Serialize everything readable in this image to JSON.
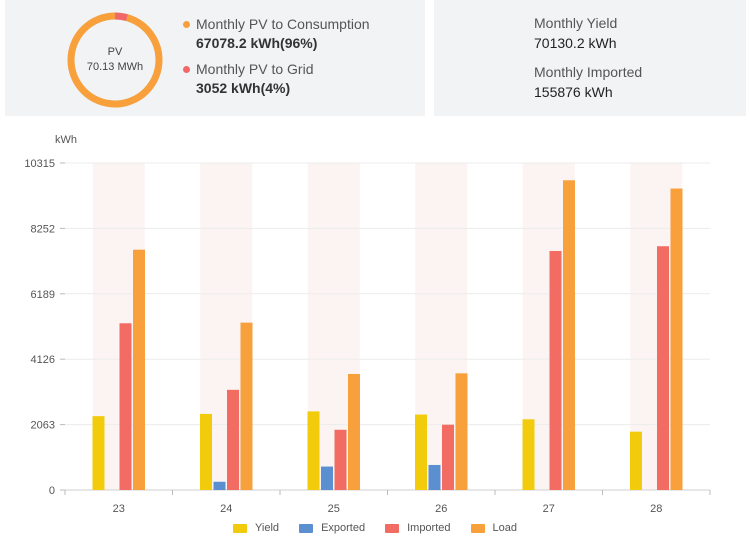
{
  "summary": {
    "donut": {
      "title": "PV",
      "value": "70.13 MWh",
      "consumption_share": 0.956,
      "grid_share": 0.044,
      "color_consumption": "#f7a03c",
      "color_grid": "#f06868"
    },
    "legend": [
      {
        "label": "Monthly PV to Consumption",
        "value": "67078.2 kWh(96%)",
        "color": "#f7a03c"
      },
      {
        "label": "Monthly PV to Grid",
        "value": "3052 kWh(4%)",
        "color": "#f06868"
      }
    ],
    "stats": [
      {
        "label": "Monthly Yield",
        "value": "70130.2 kWh"
      },
      {
        "label": "Monthly Imported",
        "value": "155876 kWh"
      }
    ]
  },
  "chart_data": {
    "type": "bar",
    "ylabel": "kWh",
    "ylim": [
      0,
      10315
    ],
    "yticks": [
      "0",
      "2063",
      "4126",
      "6189",
      "8252",
      "10315"
    ],
    "categories": [
      "23",
      "24",
      "25",
      "26",
      "27",
      "28"
    ],
    "series": [
      {
        "name": "Yield",
        "color": "#f2cc0c",
        "values": [
          2330,
          2400,
          2480,
          2380,
          2230,
          1840
        ]
      },
      {
        "name": "Exported",
        "color": "#5b8fd0",
        "values": [
          0,
          260,
          740,
          790,
          0,
          0
        ]
      },
      {
        "name": "Imported",
        "color": "#f26c64",
        "values": [
          5260,
          3160,
          1900,
          2060,
          7540,
          7690
        ]
      },
      {
        "name": "Load",
        "color": "#f7a03c",
        "values": [
          7580,
          5280,
          3660,
          3680,
          9770,
          9510
        ]
      }
    ],
    "highlight_band_color": "#fbf4f2",
    "grid": true
  }
}
